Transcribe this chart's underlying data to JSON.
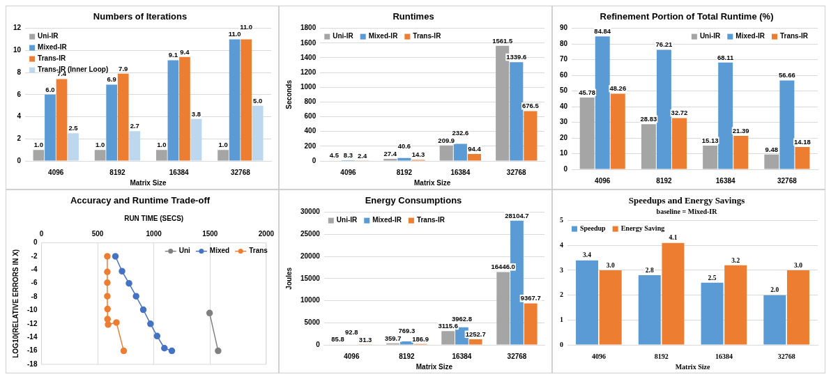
{
  "chart_data": [
    {
      "type": "bar",
      "title": "Numbers of Iterations",
      "xlabel": "Matrix Size",
      "categories": [
        "4096",
        "8192",
        "16384",
        "32768"
      ],
      "series": [
        {
          "name": "Uni-IR",
          "color": "#a5a5a5",
          "values": [
            1.0,
            1.0,
            1.0,
            1.0
          ],
          "value_labels": [
            "1.0",
            "1.0",
            "1.0",
            "1.0"
          ]
        },
        {
          "name": "Mixed-IR",
          "color": "#5b9bd5",
          "values": [
            6.0,
            6.9,
            9.1,
            11.0
          ],
          "value_labels": [
            "6.0",
            "6.9",
            "9.1",
            "11.0"
          ]
        },
        {
          "name": "Trans-IR",
          "color": "#ed7d31",
          "values": [
            7.4,
            7.9,
            9.4,
            11.0
          ],
          "value_labels": [
            "7.4",
            "7.9",
            "9.4",
            "11.0"
          ]
        },
        {
          "name": "Trans-IR (Inner Loop)",
          "color": "#bdd7ee",
          "values": [
            2.5,
            2.7,
            3.8,
            5.0
          ],
          "value_labels": [
            "2.5",
            "2.7",
            "3.8",
            "5.0"
          ]
        }
      ],
      "ylim": [
        0,
        12
      ],
      "yticks": [
        0,
        2,
        4,
        6,
        8,
        10,
        12
      ],
      "grid": "y",
      "legend": "top left"
    },
    {
      "type": "bar",
      "title": "Runtimes",
      "xlabel": "Matrix Size",
      "ylabel": "Seconds",
      "categories": [
        "4096",
        "8192",
        "16384",
        "32768"
      ],
      "series": [
        {
          "name": "Uni-IR",
          "color": "#a5a5a5",
          "values": [
            4.5,
            27.4,
            209.9,
            1561.5
          ],
          "value_labels": [
            "4.5",
            "27.4",
            "209.9",
            "1561.5"
          ]
        },
        {
          "name": "Mixed-IR",
          "color": "#5b9bd5",
          "values": [
            8.3,
            40.6,
            232.6,
            1339.6
          ],
          "value_labels": [
            "8.3",
            "40.6",
            "232.6",
            "1339.6"
          ]
        },
        {
          "name": "Trans-IR",
          "color": "#ed7d31",
          "values": [
            2.4,
            14.3,
            94.4,
            676.5
          ],
          "value_labels": [
            "2.4",
            "14.3",
            "94.4",
            "676.5"
          ]
        }
      ],
      "ylim": [
        0,
        1800
      ],
      "yticks": [
        0,
        200,
        400,
        600,
        800,
        1000,
        1200,
        1400,
        1600,
        1800
      ],
      "grid": "y",
      "legend": "top left"
    },
    {
      "type": "bar",
      "title": "Refinement Portion of Total Runtime (%)",
      "categories": [
        "4096",
        "8192",
        "16384",
        "32768"
      ],
      "series": [
        {
          "name": "Uni-IR",
          "color": "#a5a5a5",
          "values": [
            45.78,
            28.83,
            15.13,
            9.48
          ],
          "value_labels": [
            "45.78",
            "28.83",
            "15.13",
            "9.48"
          ]
        },
        {
          "name": "Mixed-IR",
          "color": "#5b9bd5",
          "values": [
            84.84,
            76.21,
            68.11,
            56.66
          ],
          "value_labels": [
            "84.84",
            "76.21",
            "68.11",
            "56.66"
          ]
        },
        {
          "name": "Trans-IR",
          "color": "#ed7d31",
          "values": [
            48.26,
            32.72,
            21.39,
            14.18
          ],
          "value_labels": [
            "48.26",
            "32.72",
            "21.39",
            "14.18"
          ]
        }
      ],
      "ylim": [
        0,
        90
      ],
      "yticks": [
        0,
        10,
        20,
        30,
        40,
        50,
        60,
        70,
        80,
        90
      ],
      "grid": "y",
      "legend": "top right"
    },
    {
      "type": "line",
      "title": "Accuracy and Runtime Trade-off",
      "xlabel": "RUN TIME (SECS)",
      "ylabel": "LOG10(RELATIVE ERRORS IN X)",
      "series": [
        {
          "name": "Uni",
          "color": "#808080",
          "x": [
            1496,
            1572
          ],
          "values": [
            -10.4,
            -16.0
          ]
        },
        {
          "name": "Mixed",
          "color": "#4472c4",
          "x": [
            658,
            717,
            779,
            842,
            906,
            970,
            1029,
            1094,
            1160
          ],
          "values": [
            -2.0,
            -4.2,
            -6.0,
            -7.9,
            -9.9,
            -12.0,
            -13.8,
            -15.6,
            -16.0
          ]
        },
        {
          "name": "Trans",
          "color": "#ed7d31",
          "x": [
            586,
            586,
            586,
            586,
            588,
            588,
            593,
            667,
            732
          ],
          "values": [
            -2.0,
            -4.3,
            -5.9,
            -7.9,
            -9.8,
            -11.3,
            -12.1,
            -11.8,
            -16.0
          ]
        }
      ],
      "xlim": [
        0,
        2000
      ],
      "xticks": [
        0,
        500,
        1000,
        1500,
        2000
      ],
      "ylim": [
        -18,
        0
      ],
      "yticks": [
        0,
        -2,
        -4,
        -6,
        -8,
        -10,
        -12,
        -14,
        -16,
        -18
      ],
      "grid": "x",
      "legend": "top right",
      "marker": "circle",
      "line_style": "solid"
    },
    {
      "type": "bar",
      "title": "Energy Consumptions",
      "xlabel": "Matrix Size",
      "ylabel": "Joules",
      "categories": [
        "4096",
        "8192",
        "16384",
        "32768"
      ],
      "series": [
        {
          "name": "Uni-IR",
          "color": "#a5a5a5",
          "values": [
            85.8,
            359.7,
            3115.6,
            16446.0
          ],
          "value_labels": [
            "85.8",
            "359.7",
            "3115.6",
            "16446.0"
          ]
        },
        {
          "name": "Mixed-IR",
          "color": "#5b9bd5",
          "values": [
            92.8,
            769.3,
            3962.8,
            28104.7
          ],
          "value_labels": [
            "92.8",
            "769.3",
            "3962.8",
            "28104.7"
          ]
        },
        {
          "name": "Trans-IR",
          "color": "#ed7d31",
          "values": [
            31.3,
            186.9,
            1252.7,
            9367.7
          ],
          "value_labels": [
            "31.3",
            "186.9",
            "1252.7",
            "9367.7"
          ]
        }
      ],
      "ylim": [
        0,
        30000
      ],
      "yticks": [
        0,
        5000,
        10000,
        15000,
        20000,
        25000,
        30000
      ],
      "grid": "y",
      "legend": "top left"
    },
    {
      "type": "bar",
      "title": "Speedups and Energy Savings",
      "subtitle": "baseline = Mixed-IR",
      "xlabel": "Matrix Size",
      "categories": [
        "4096",
        "8192",
        "16384",
        "32768"
      ],
      "series": [
        {
          "name": "Speedup",
          "color": "#5b9bd5",
          "values": [
            3.4,
            2.8,
            2.5,
            2.0
          ],
          "value_labels": [
            "3.4",
            "2.8",
            "2.5",
            "2.0"
          ]
        },
        {
          "name": "Energy Saving",
          "color": "#ed7d31",
          "values": [
            3.0,
            4.1,
            3.2,
            3.0
          ],
          "value_labels": [
            "3.0",
            "4.1",
            "3.2",
            "3.0"
          ]
        }
      ],
      "ylim": [
        0,
        5
      ],
      "yticks": [
        0,
        1,
        2,
        3,
        4,
        5
      ],
      "grid": "y",
      "legend": "top left"
    }
  ]
}
